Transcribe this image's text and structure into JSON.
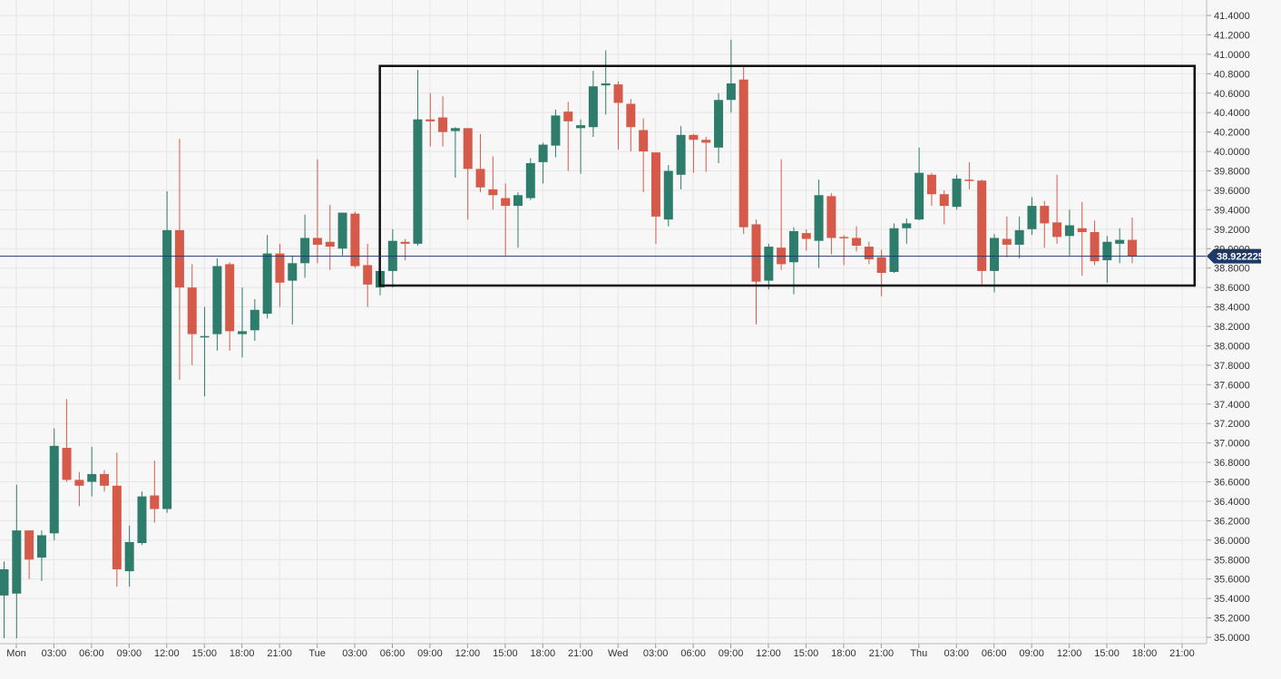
{
  "chart_data": {
    "type": "candlestick",
    "x_tick_labels": [
      "Mon",
      "03:00",
      "06:00",
      "09:00",
      "12:00",
      "15:00",
      "18:00",
      "21:00",
      "Tue",
      "03:00",
      "06:00",
      "09:00",
      "12:00",
      "15:00",
      "18:00",
      "21:00",
      "Wed",
      "03:00",
      "06:00",
      "09:00",
      "12:00",
      "15:00",
      "18:00",
      "21:00",
      "Thu",
      "03:00",
      "06:00",
      "09:00",
      "12:00",
      "15:00",
      "18:00",
      "21:00"
    ],
    "y_ticks": [
      "41.4000",
      "41.2000",
      "41.0000",
      "40.8000",
      "40.6000",
      "40.4000",
      "40.2000",
      "40.0000",
      "39.8000",
      "39.6000",
      "39.4000",
      "39.2000",
      "39.0000",
      "38.8000",
      "38.6000",
      "38.4000",
      "38.2000",
      "38.0000",
      "37.8000",
      "37.6000",
      "37.4000",
      "37.2000",
      "37.0000",
      "36.8000",
      "36.6000",
      "36.4000",
      "36.2000",
      "36.0000",
      "35.8000",
      "35.6000",
      "35.4000",
      "35.2000",
      "35.0000"
    ],
    "ylim": [
      34.97,
      41.47
    ],
    "current_price": 38.922225,
    "current_price_label": "38.922225",
    "range_box": {
      "x_start": "05:00",
      "x_end": "22:00",
      "y_top": 40.88,
      "y_bottom": 38.62
    },
    "grid": true,
    "colors": {
      "up": "#2e7d6c",
      "down": "#d65a4a",
      "price_line": "#1f3a6a",
      "box": "#111111"
    },
    "candles": [
      {
        "o": 35.43,
        "h": 35.78,
        "l": 34.99,
        "c": 35.7
      },
      {
        "o": 35.45,
        "h": 36.57,
        "l": 34.99,
        "c": 36.1
      },
      {
        "o": 36.1,
        "h": 36.1,
        "l": 35.6,
        "c": 35.8
      },
      {
        "o": 35.82,
        "h": 36.1,
        "l": 35.58,
        "c": 36.05
      },
      {
        "o": 36.07,
        "h": 37.15,
        "l": 36.0,
        "c": 36.97
      },
      {
        "o": 36.95,
        "h": 37.45,
        "l": 36.6,
        "c": 36.62
      },
      {
        "o": 36.62,
        "h": 36.7,
        "l": 36.35,
        "c": 36.56
      },
      {
        "o": 36.6,
        "h": 36.96,
        "l": 36.45,
        "c": 36.68
      },
      {
        "o": 36.68,
        "h": 36.72,
        "l": 36.5,
        "c": 36.56
      },
      {
        "o": 36.56,
        "h": 36.9,
        "l": 35.52,
        "c": 35.7
      },
      {
        "o": 35.68,
        "h": 36.15,
        "l": 35.52,
        "c": 35.98
      },
      {
        "o": 35.97,
        "h": 36.5,
        "l": 35.95,
        "c": 36.45
      },
      {
        "o": 36.46,
        "h": 36.82,
        "l": 36.18,
        "c": 36.32
      },
      {
        "o": 36.32,
        "h": 39.59,
        "l": 36.28,
        "c": 39.19
      },
      {
        "o": 39.19,
        "h": 40.13,
        "l": 37.65,
        "c": 38.6
      },
      {
        "o": 38.6,
        "h": 38.84,
        "l": 37.8,
        "c": 38.12
      },
      {
        "o": 38.1,
        "h": 38.4,
        "l": 37.48,
        "c": 38.1
      },
      {
        "o": 38.12,
        "h": 38.9,
        "l": 37.95,
        "c": 38.82
      },
      {
        "o": 38.84,
        "h": 38.86,
        "l": 37.95,
        "c": 38.15
      },
      {
        "o": 38.12,
        "h": 38.6,
        "l": 37.88,
        "c": 38.15
      },
      {
        "o": 38.16,
        "h": 38.48,
        "l": 38.05,
        "c": 38.37
      },
      {
        "o": 38.33,
        "h": 39.14,
        "l": 38.28,
        "c": 38.95
      },
      {
        "o": 38.95,
        "h": 39.05,
        "l": 38.4,
        "c": 38.65
      },
      {
        "o": 38.67,
        "h": 38.93,
        "l": 38.22,
        "c": 38.85
      },
      {
        "o": 38.85,
        "h": 39.35,
        "l": 38.7,
        "c": 39.11
      },
      {
        "o": 39.11,
        "h": 39.92,
        "l": 38.85,
        "c": 39.04
      },
      {
        "o": 39.07,
        "h": 39.45,
        "l": 38.78,
        "c": 39.02
      },
      {
        "o": 39.0,
        "h": 39.37,
        "l": 38.93,
        "c": 39.37
      },
      {
        "o": 39.36,
        "h": 39.38,
        "l": 38.8,
        "c": 38.82
      },
      {
        "o": 38.83,
        "h": 39.05,
        "l": 38.4,
        "c": 38.63
      },
      {
        "o": 38.6,
        "h": 38.9,
        "l": 38.52,
        "c": 38.77
      },
      {
        "o": 38.77,
        "h": 39.2,
        "l": 38.6,
        "c": 39.08
      },
      {
        "o": 39.07,
        "h": 39.1,
        "l": 38.88,
        "c": 39.05
      },
      {
        "o": 39.05,
        "h": 40.84,
        "l": 39.03,
        "c": 40.33
      },
      {
        "o": 40.33,
        "h": 40.6,
        "l": 40.05,
        "c": 40.31
      },
      {
        "o": 40.35,
        "h": 40.57,
        "l": 40.05,
        "c": 40.2
      },
      {
        "o": 40.21,
        "h": 40.25,
        "l": 39.73,
        "c": 40.24
      },
      {
        "o": 40.24,
        "h": 40.24,
        "l": 39.3,
        "c": 39.82
      },
      {
        "o": 39.82,
        "h": 40.18,
        "l": 39.58,
        "c": 39.63
      },
      {
        "o": 39.61,
        "h": 39.95,
        "l": 39.4,
        "c": 39.55
      },
      {
        "o": 39.52,
        "h": 39.67,
        "l": 38.93,
        "c": 39.44
      },
      {
        "o": 39.44,
        "h": 39.58,
        "l": 39.01,
        "c": 39.55
      },
      {
        "o": 39.52,
        "h": 39.93,
        "l": 39.5,
        "c": 39.88
      },
      {
        "o": 39.89,
        "h": 40.09,
        "l": 39.67,
        "c": 40.07
      },
      {
        "o": 40.06,
        "h": 40.43,
        "l": 39.94,
        "c": 40.37
      },
      {
        "o": 40.41,
        "h": 40.51,
        "l": 39.8,
        "c": 40.31
      },
      {
        "o": 40.24,
        "h": 40.33,
        "l": 39.77,
        "c": 40.27
      },
      {
        "o": 40.25,
        "h": 40.83,
        "l": 40.15,
        "c": 40.67
      },
      {
        "o": 40.68,
        "h": 41.04,
        "l": 40.38,
        "c": 40.7
      },
      {
        "o": 40.69,
        "h": 40.72,
        "l": 40.02,
        "c": 40.5
      },
      {
        "o": 40.49,
        "h": 40.54,
        "l": 40.0,
        "c": 40.25
      },
      {
        "o": 40.22,
        "h": 40.34,
        "l": 39.58,
        "c": 40.0
      },
      {
        "o": 39.99,
        "h": 39.99,
        "l": 39.05,
        "c": 39.33
      },
      {
        "o": 39.3,
        "h": 39.86,
        "l": 39.23,
        "c": 39.8
      },
      {
        "o": 39.76,
        "h": 40.26,
        "l": 39.61,
        "c": 40.17
      },
      {
        "o": 40.17,
        "h": 40.18,
        "l": 39.78,
        "c": 40.12
      },
      {
        "o": 40.12,
        "h": 40.15,
        "l": 39.79,
        "c": 40.09
      },
      {
        "o": 40.04,
        "h": 40.6,
        "l": 39.88,
        "c": 40.53
      },
      {
        "o": 40.53,
        "h": 41.15,
        "l": 40.4,
        "c": 40.7
      },
      {
        "o": 40.74,
        "h": 40.87,
        "l": 39.15,
        "c": 39.22
      },
      {
        "o": 39.25,
        "h": 39.3,
        "l": 38.22,
        "c": 38.66
      },
      {
        "o": 38.67,
        "h": 39.05,
        "l": 38.58,
        "c": 39.02
      },
      {
        "o": 39.01,
        "h": 39.92,
        "l": 38.78,
        "c": 38.84
      },
      {
        "o": 38.86,
        "h": 39.22,
        "l": 38.53,
        "c": 39.18
      },
      {
        "o": 39.16,
        "h": 39.2,
        "l": 38.98,
        "c": 39.1
      },
      {
        "o": 39.08,
        "h": 39.71,
        "l": 38.8,
        "c": 39.55
      },
      {
        "o": 39.54,
        "h": 39.57,
        "l": 38.94,
        "c": 39.11
      },
      {
        "o": 39.12,
        "h": 39.14,
        "l": 38.83,
        "c": 39.11
      },
      {
        "o": 39.11,
        "h": 39.23,
        "l": 38.97,
        "c": 39.03
      },
      {
        "o": 39.02,
        "h": 39.07,
        "l": 38.84,
        "c": 38.89
      },
      {
        "o": 38.91,
        "h": 38.99,
        "l": 38.51,
        "c": 38.75
      },
      {
        "o": 38.76,
        "h": 39.26,
        "l": 38.75,
        "c": 39.21
      },
      {
        "o": 39.21,
        "h": 39.31,
        "l": 39.05,
        "c": 39.26
      },
      {
        "o": 39.3,
        "h": 40.04,
        "l": 39.29,
        "c": 39.78
      },
      {
        "o": 39.76,
        "h": 39.78,
        "l": 39.44,
        "c": 39.56
      },
      {
        "o": 39.56,
        "h": 39.6,
        "l": 39.25,
        "c": 39.44
      },
      {
        "o": 39.43,
        "h": 39.76,
        "l": 39.4,
        "c": 39.72
      },
      {
        "o": 39.71,
        "h": 39.89,
        "l": 39.61,
        "c": 39.7
      },
      {
        "o": 39.7,
        "h": 39.71,
        "l": 38.63,
        "c": 38.77
      },
      {
        "o": 38.77,
        "h": 39.15,
        "l": 38.55,
        "c": 39.11
      },
      {
        "o": 39.1,
        "h": 39.33,
        "l": 38.91,
        "c": 39.04
      },
      {
        "o": 39.04,
        "h": 39.33,
        "l": 38.9,
        "c": 39.19
      },
      {
        "o": 39.2,
        "h": 39.53,
        "l": 39.14,
        "c": 39.44
      },
      {
        "o": 39.44,
        "h": 39.49,
        "l": 39.01,
        "c": 39.26
      },
      {
        "o": 39.27,
        "h": 39.76,
        "l": 39.05,
        "c": 39.12
      },
      {
        "o": 39.13,
        "h": 39.4,
        "l": 38.93,
        "c": 39.24
      },
      {
        "o": 39.21,
        "h": 39.48,
        "l": 38.72,
        "c": 39.17
      },
      {
        "o": 39.17,
        "h": 39.29,
        "l": 38.83,
        "c": 38.87
      },
      {
        "o": 38.88,
        "h": 39.13,
        "l": 38.65,
        "c": 39.07
      },
      {
        "o": 39.05,
        "h": 39.21,
        "l": 38.85,
        "c": 39.09
      },
      {
        "o": 39.09,
        "h": 39.32,
        "l": 38.85,
        "c": 38.92
      }
    ]
  }
}
